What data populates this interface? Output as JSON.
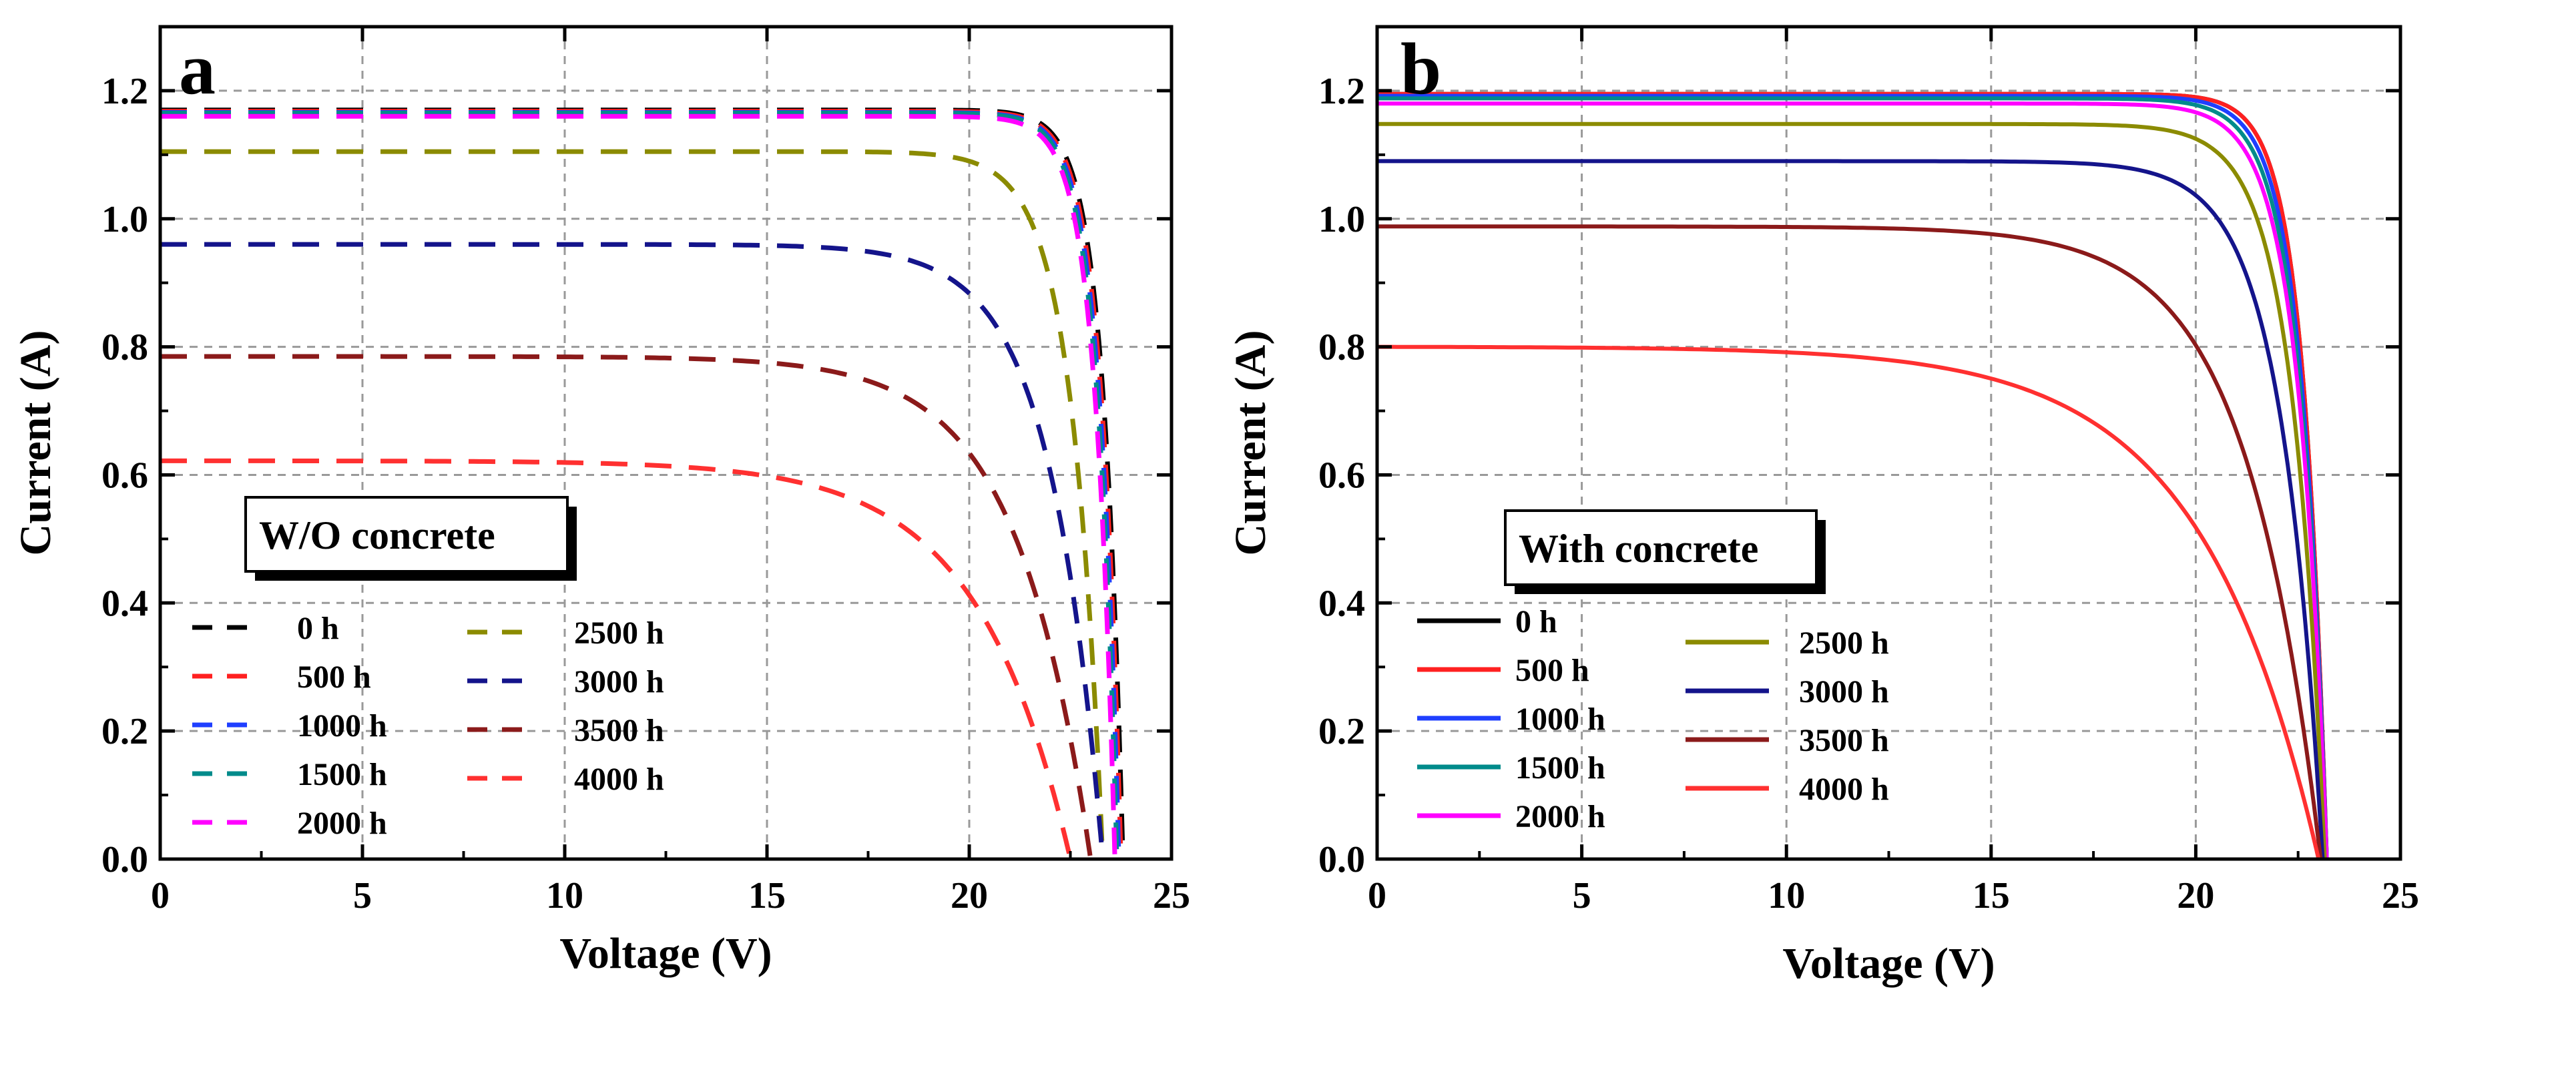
{
  "chart_data": [
    {
      "type": "line",
      "panel_label": "a",
      "line_style": "dashed",
      "box_label": "W/O concrete",
      "xlabel": "Voltage (V)",
      "ylabel": "Current (A)",
      "xlim": [
        0,
        25
      ],
      "ylim": [
        0,
        1.3
      ],
      "xticks": [
        "0",
        "5",
        "10",
        "15",
        "20",
        "25"
      ],
      "yticks": [
        "0.0",
        "0.2",
        "0.4",
        "0.6",
        "0.8",
        "1.0",
        "1.2"
      ],
      "grid": true,
      "legend_position": "bottom-left",
      "series": [
        {
          "name": "0 h",
          "color": "#000000",
          "isc": 1.17,
          "voc": 23.8,
          "knee": 0.95
        },
        {
          "name": "500 h",
          "color": "#ff2020",
          "isc": 1.168,
          "voc": 23.75,
          "knee": 0.95
        },
        {
          "name": "1000 h",
          "color": "#1f3fff",
          "isc": 1.166,
          "voc": 23.7,
          "knee": 0.95
        },
        {
          "name": "1500 h",
          "color": "#008b8b",
          "isc": 1.165,
          "voc": 23.65,
          "knee": 0.95
        },
        {
          "name": "2000 h",
          "color": "#ff00ff",
          "isc": 1.16,
          "voc": 23.6,
          "knee": 0.95
        },
        {
          "name": "2500 h",
          "color": "#8b8b00",
          "isc": 1.105,
          "voc": 23.3,
          "knee": 0.92
        },
        {
          "name": "3000 h",
          "color": "#14148b",
          "isc": 0.96,
          "voc": 23.3,
          "knee": 0.86
        },
        {
          "name": "3500 h",
          "color": "#8b1a1a",
          "isc": 0.785,
          "voc": 23.0,
          "knee": 0.8
        },
        {
          "name": "4000 h",
          "color": "#ff3030",
          "isc": 0.622,
          "voc": 22.5,
          "knee": 0.74
        }
      ]
    },
    {
      "type": "line",
      "panel_label": "b",
      "line_style": "solid",
      "box_label": "With concrete",
      "xlabel": "Voltage (V)",
      "ylabel": "Current (A)",
      "xlim": [
        0,
        25
      ],
      "ylim": [
        0,
        1.3
      ],
      "xticks": [
        "0",
        "5",
        "10",
        "15",
        "20",
        "25"
      ],
      "yticks": [
        "0.0",
        "0.2",
        "0.4",
        "0.6",
        "0.8",
        "1.0",
        "1.2"
      ],
      "grid": true,
      "legend_position": "bottom-left",
      "series": [
        {
          "name": "0 h",
          "color": "#000000",
          "isc": 1.195,
          "voc": 23.2,
          "knee": 0.94
        },
        {
          "name": "500 h",
          "color": "#ff2020",
          "isc": 1.195,
          "voc": 23.2,
          "knee": 0.94
        },
        {
          "name": "1000 h",
          "color": "#1f3fff",
          "isc": 1.192,
          "voc": 23.2,
          "knee": 0.935
        },
        {
          "name": "1500 h",
          "color": "#008b8b",
          "isc": 1.188,
          "voc": 23.2,
          "knee": 0.93
        },
        {
          "name": "2000 h",
          "color": "#ff00ff",
          "isc": 1.18,
          "voc": 23.2,
          "knee": 0.925
        },
        {
          "name": "2500 h",
          "color": "#8b8b00",
          "isc": 1.148,
          "voc": 23.15,
          "knee": 0.915
        },
        {
          "name": "3000 h",
          "color": "#14148b",
          "isc": 1.09,
          "voc": 23.1,
          "knee": 0.89
        },
        {
          "name": "3500 h",
          "color": "#8b1a1a",
          "isc": 0.988,
          "voc": 23.05,
          "knee": 0.8
        },
        {
          "name": "4000 h",
          "color": "#ff3030",
          "isc": 0.8,
          "voc": 23.0,
          "knee": 0.68
        }
      ]
    }
  ]
}
